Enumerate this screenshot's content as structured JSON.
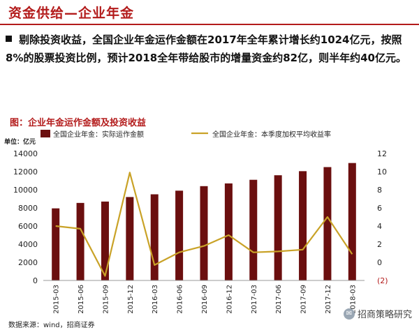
{
  "header": {
    "title": "资金供给—企业年金"
  },
  "bullet": {
    "text": "剔除投资收益，全国企业年金运作金额在2017年全年累计增长约1024亿元，按照8%的股票投资比例，预计2018全年带给股市的增量资金约82亿，则半年约40亿元。"
  },
  "figure": {
    "caption": "图：企业年金运作金额及投资收益"
  },
  "footer": {
    "source": "数据来源：wind，招商证券",
    "watermark": "招商策略研究"
  },
  "colors": {
    "bar": "#6b0f0f",
    "line": "#c9a227",
    "accent": "#b31b1b"
  },
  "icons": {
    "watermark": "wechat-icon"
  },
  "chart_data": {
    "type": "bar",
    "unit_label": "单位：亿元",
    "categories": [
      "2015-03",
      "2015-06",
      "2015-09",
      "2015-12",
      "2016-03",
      "2016-06",
      "2016-09",
      "2016-12",
      "2017-03",
      "2017-06",
      "2017-09",
      "2017-12",
      "2018-03"
    ],
    "series": [
      {
        "name": "全国企业年金：实际运作金额",
        "type": "bar",
        "axis": "left",
        "values": [
          7950,
          8550,
          8700,
          9200,
          9500,
          9900,
          10400,
          10700,
          11100,
          11600,
          12050,
          12500,
          12950
        ]
      },
      {
        "name": "全国企业年金：本季度加权平均收益率",
        "type": "line",
        "axis": "right",
        "values": [
          4.0,
          3.7,
          -1.5,
          9.9,
          -0.3,
          1.1,
          1.8,
          3.0,
          1.1,
          1.2,
          1.4,
          5.0,
          0.9
        ]
      }
    ],
    "left_axis": {
      "min": 0,
      "max": 14000,
      "ticks": [
        0,
        2000,
        4000,
        6000,
        8000,
        10000,
        12000,
        14000
      ],
      "tick_labels": [
        "0",
        "2000",
        "4000",
        "6000",
        "8000",
        "10000",
        "12000",
        "14000"
      ]
    },
    "right_axis": {
      "min": -2,
      "max": 12,
      "ticks": [
        -2,
        0,
        2,
        4,
        6,
        8,
        10,
        12
      ],
      "tick_labels": [
        "(2)",
        "0",
        "2",
        "4",
        "6",
        "8",
        "10",
        "12"
      ]
    },
    "legend_position": "top",
    "grid": false
  }
}
